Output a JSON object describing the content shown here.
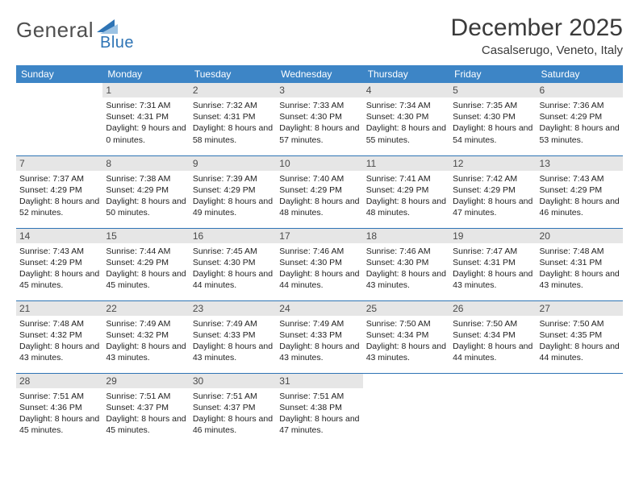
{
  "brand": {
    "word1": "General",
    "word2": "Blue"
  },
  "title": "December 2025",
  "subtitle": "Casalserugo, Veneto, Italy",
  "colors": {
    "header_bg": "#3d85c6",
    "header_fg": "#ffffff",
    "rule": "#2e74b5",
    "daynum_bg": "#e6e6e6",
    "text": "#222222",
    "title": "#3a3a3a"
  },
  "weekdays": [
    "Sunday",
    "Monday",
    "Tuesday",
    "Wednesday",
    "Thursday",
    "Friday",
    "Saturday"
  ],
  "first_weekday_index": 1,
  "days": [
    {
      "n": 1,
      "sunrise": "7:31 AM",
      "sunset": "4:31 PM",
      "daylight": "9 hours and 0 minutes."
    },
    {
      "n": 2,
      "sunrise": "7:32 AM",
      "sunset": "4:31 PM",
      "daylight": "8 hours and 58 minutes."
    },
    {
      "n": 3,
      "sunrise": "7:33 AM",
      "sunset": "4:30 PM",
      "daylight": "8 hours and 57 minutes."
    },
    {
      "n": 4,
      "sunrise": "7:34 AM",
      "sunset": "4:30 PM",
      "daylight": "8 hours and 55 minutes."
    },
    {
      "n": 5,
      "sunrise": "7:35 AM",
      "sunset": "4:30 PM",
      "daylight": "8 hours and 54 minutes."
    },
    {
      "n": 6,
      "sunrise": "7:36 AM",
      "sunset": "4:29 PM",
      "daylight": "8 hours and 53 minutes."
    },
    {
      "n": 7,
      "sunrise": "7:37 AM",
      "sunset": "4:29 PM",
      "daylight": "8 hours and 52 minutes."
    },
    {
      "n": 8,
      "sunrise": "7:38 AM",
      "sunset": "4:29 PM",
      "daylight": "8 hours and 50 minutes."
    },
    {
      "n": 9,
      "sunrise": "7:39 AM",
      "sunset": "4:29 PM",
      "daylight": "8 hours and 49 minutes."
    },
    {
      "n": 10,
      "sunrise": "7:40 AM",
      "sunset": "4:29 PM",
      "daylight": "8 hours and 48 minutes."
    },
    {
      "n": 11,
      "sunrise": "7:41 AM",
      "sunset": "4:29 PM",
      "daylight": "8 hours and 48 minutes."
    },
    {
      "n": 12,
      "sunrise": "7:42 AM",
      "sunset": "4:29 PM",
      "daylight": "8 hours and 47 minutes."
    },
    {
      "n": 13,
      "sunrise": "7:43 AM",
      "sunset": "4:29 PM",
      "daylight": "8 hours and 46 minutes."
    },
    {
      "n": 14,
      "sunrise": "7:43 AM",
      "sunset": "4:29 PM",
      "daylight": "8 hours and 45 minutes."
    },
    {
      "n": 15,
      "sunrise": "7:44 AM",
      "sunset": "4:29 PM",
      "daylight": "8 hours and 45 minutes."
    },
    {
      "n": 16,
      "sunrise": "7:45 AM",
      "sunset": "4:30 PM",
      "daylight": "8 hours and 44 minutes."
    },
    {
      "n": 17,
      "sunrise": "7:46 AM",
      "sunset": "4:30 PM",
      "daylight": "8 hours and 44 minutes."
    },
    {
      "n": 18,
      "sunrise": "7:46 AM",
      "sunset": "4:30 PM",
      "daylight": "8 hours and 43 minutes."
    },
    {
      "n": 19,
      "sunrise": "7:47 AM",
      "sunset": "4:31 PM",
      "daylight": "8 hours and 43 minutes."
    },
    {
      "n": 20,
      "sunrise": "7:48 AM",
      "sunset": "4:31 PM",
      "daylight": "8 hours and 43 minutes."
    },
    {
      "n": 21,
      "sunrise": "7:48 AM",
      "sunset": "4:32 PM",
      "daylight": "8 hours and 43 minutes."
    },
    {
      "n": 22,
      "sunrise": "7:49 AM",
      "sunset": "4:32 PM",
      "daylight": "8 hours and 43 minutes."
    },
    {
      "n": 23,
      "sunrise": "7:49 AM",
      "sunset": "4:33 PM",
      "daylight": "8 hours and 43 minutes."
    },
    {
      "n": 24,
      "sunrise": "7:49 AM",
      "sunset": "4:33 PM",
      "daylight": "8 hours and 43 minutes."
    },
    {
      "n": 25,
      "sunrise": "7:50 AM",
      "sunset": "4:34 PM",
      "daylight": "8 hours and 43 minutes."
    },
    {
      "n": 26,
      "sunrise": "7:50 AM",
      "sunset": "4:34 PM",
      "daylight": "8 hours and 44 minutes."
    },
    {
      "n": 27,
      "sunrise": "7:50 AM",
      "sunset": "4:35 PM",
      "daylight": "8 hours and 44 minutes."
    },
    {
      "n": 28,
      "sunrise": "7:51 AM",
      "sunset": "4:36 PM",
      "daylight": "8 hours and 45 minutes."
    },
    {
      "n": 29,
      "sunrise": "7:51 AM",
      "sunset": "4:37 PM",
      "daylight": "8 hours and 45 minutes."
    },
    {
      "n": 30,
      "sunrise": "7:51 AM",
      "sunset": "4:37 PM",
      "daylight": "8 hours and 46 minutes."
    },
    {
      "n": 31,
      "sunrise": "7:51 AM",
      "sunset": "4:38 PM",
      "daylight": "8 hours and 47 minutes."
    }
  ],
  "labels": {
    "sunrise": "Sunrise:",
    "sunset": "Sunset:",
    "daylight": "Daylight:"
  }
}
